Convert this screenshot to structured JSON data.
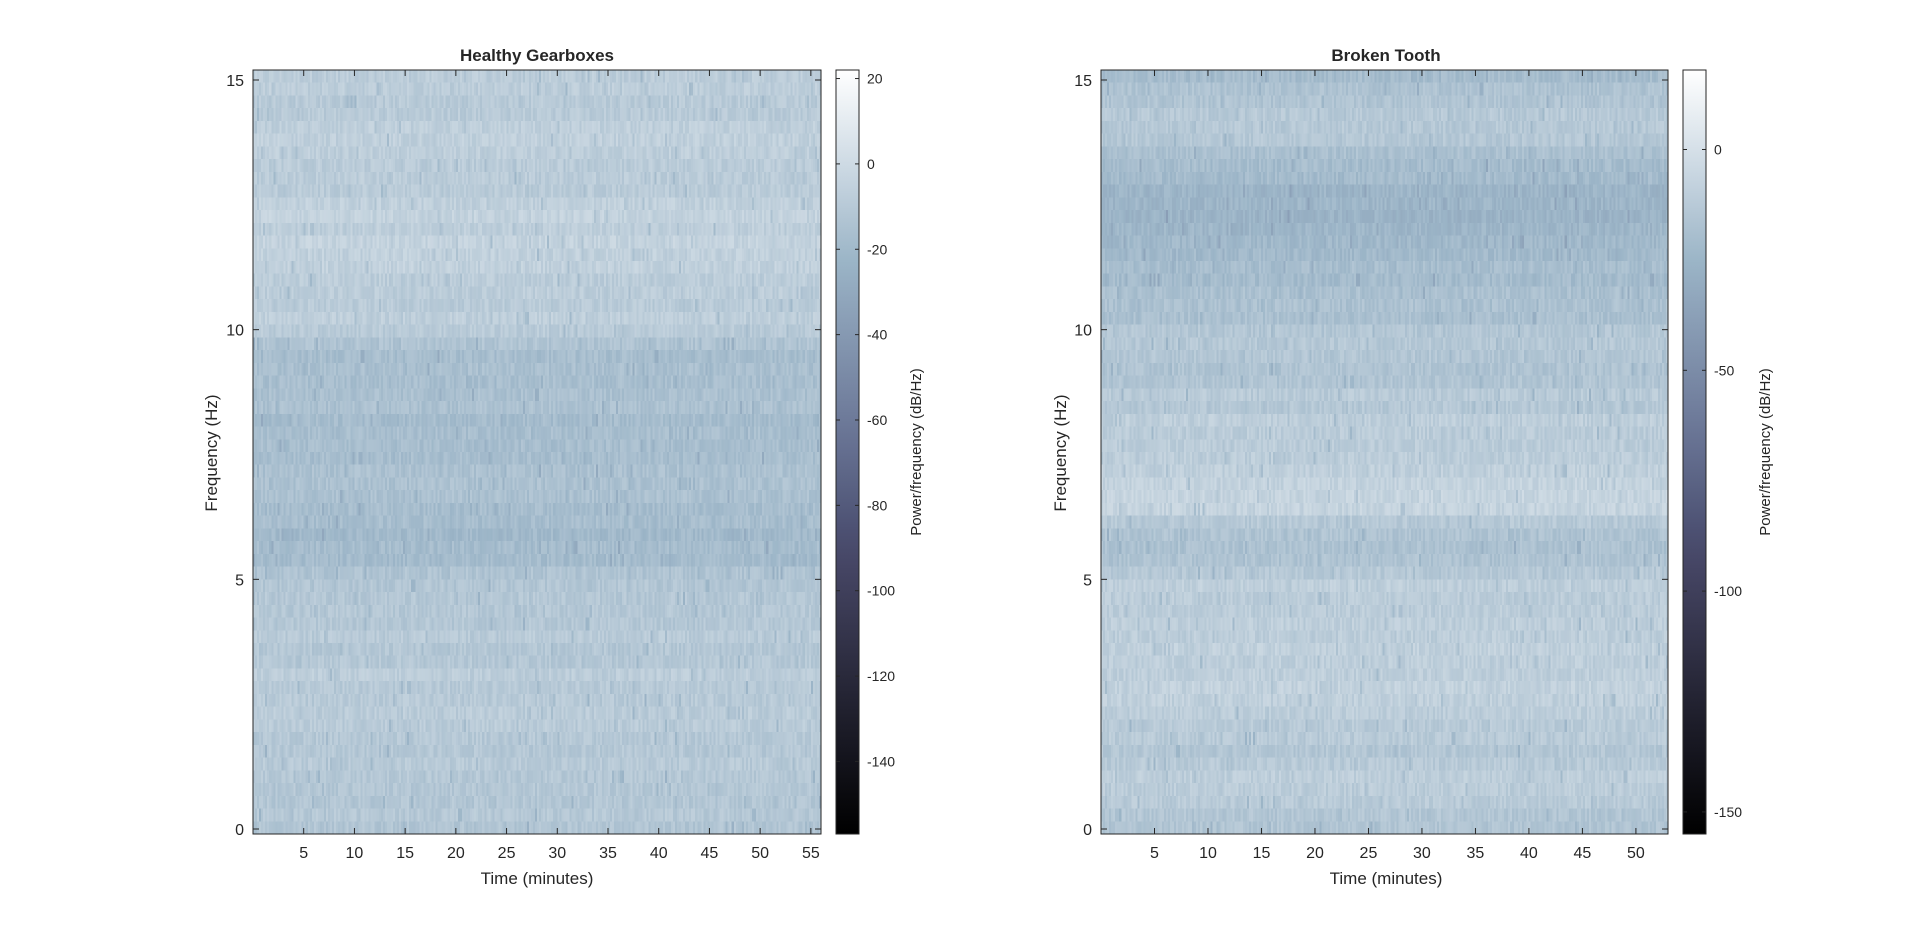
{
  "chart_data": [
    {
      "type": "heatmap",
      "title": "Healthy Gearboxes",
      "xlabel": "Time (minutes)",
      "ylabel": "Frequency (Hz)",
      "xlim": [
        0,
        56
      ],
      "ylim": [
        -0.1,
        15.2
      ],
      "xticks": [
        5,
        10,
        15,
        20,
        25,
        30,
        35,
        40,
        45,
        50,
        55
      ],
      "yticks": [
        0,
        5,
        10,
        15
      ],
      "colorbar": {
        "label": "Power/frequency (dB/Hz)",
        "range": [
          -157,
          22
        ],
        "ticks": [
          20,
          0,
          -20,
          -40,
          -60,
          -80,
          -100,
          -120,
          -140
        ]
      },
      "band_profile_db": {
        "frequency_hz": [
          0,
          1,
          2,
          3,
          4,
          5,
          5.5,
          6,
          7,
          7.5,
          8,
          9,
          9.5,
          10,
          11,
          12,
          13,
          14,
          15
        ],
        "mean_db": [
          -12,
          -10,
          -11,
          -9,
          -12,
          -14,
          -19,
          -18,
          -13,
          -17,
          -18,
          -15,
          -18,
          -9,
          -7,
          -6,
          -8,
          -7,
          -9
        ]
      },
      "colormap": "bone"
    },
    {
      "type": "heatmap",
      "title": "Broken Tooth",
      "xlabel": "Time (minutes)",
      "ylabel": "Frequency (Hz)",
      "xlim": [
        0,
        53
      ],
      "ylim": [
        -0.1,
        15.2
      ],
      "xticks": [
        5,
        10,
        15,
        20,
        25,
        30,
        35,
        40,
        45,
        50
      ],
      "yticks": [
        0,
        5,
        10,
        15
      ],
      "colorbar": {
        "label": "Power/frequency (dB/Hz)",
        "range": [
          -155,
          18
        ],
        "ticks": [
          0,
          -50,
          -100,
          -150
        ]
      },
      "band_profile_db": {
        "frequency_hz": [
          0,
          1,
          2,
          3,
          4,
          5,
          5.5,
          6,
          6.5,
          7,
          8,
          9,
          10,
          11,
          12,
          12.5,
          13,
          14,
          15
        ],
        "mean_db": [
          -14,
          -12,
          -14,
          -9,
          -10,
          -12,
          -18,
          -16,
          -6,
          -8,
          -11,
          -15,
          -16,
          -20,
          -24,
          -26,
          -24,
          -12,
          -20
        ]
      },
      "colormap": "bone"
    }
  ]
}
